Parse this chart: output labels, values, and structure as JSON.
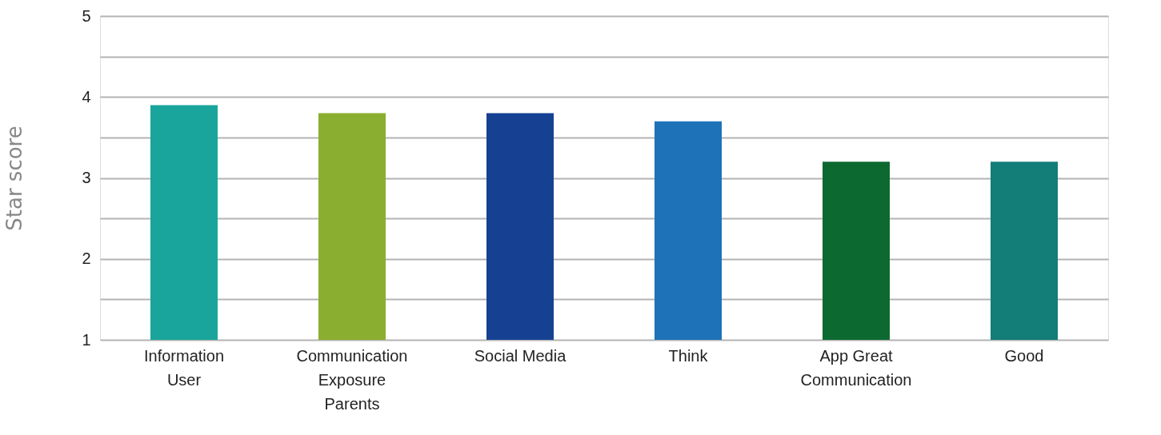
{
  "chart_data": {
    "type": "bar",
    "ylabel": "Star score",
    "categories": [
      "Information User",
      "Communication Exposure Parents",
      "Social Media",
      "Think",
      "App Great Communication",
      "Good"
    ],
    "values": [
      3.9,
      3.8,
      3.8,
      3.7,
      3.2,
      3.2
    ],
    "colors": [
      "#19a59b",
      "#8aae2f",
      "#164193",
      "#1d72b8",
      "#0c6930",
      "#137d78"
    ],
    "ylim": [
      1,
      5
    ],
    "yticks": [
      1,
      {
        "value": 1.5,
        "label": null
      },
      2,
      {
        "value": 2.5,
        "label": null
      },
      3,
      {
        "value": 3.5,
        "label": null
      },
      4,
      {
        "value": 4.5,
        "label": null
      },
      5
    ],
    "grid": "y"
  }
}
